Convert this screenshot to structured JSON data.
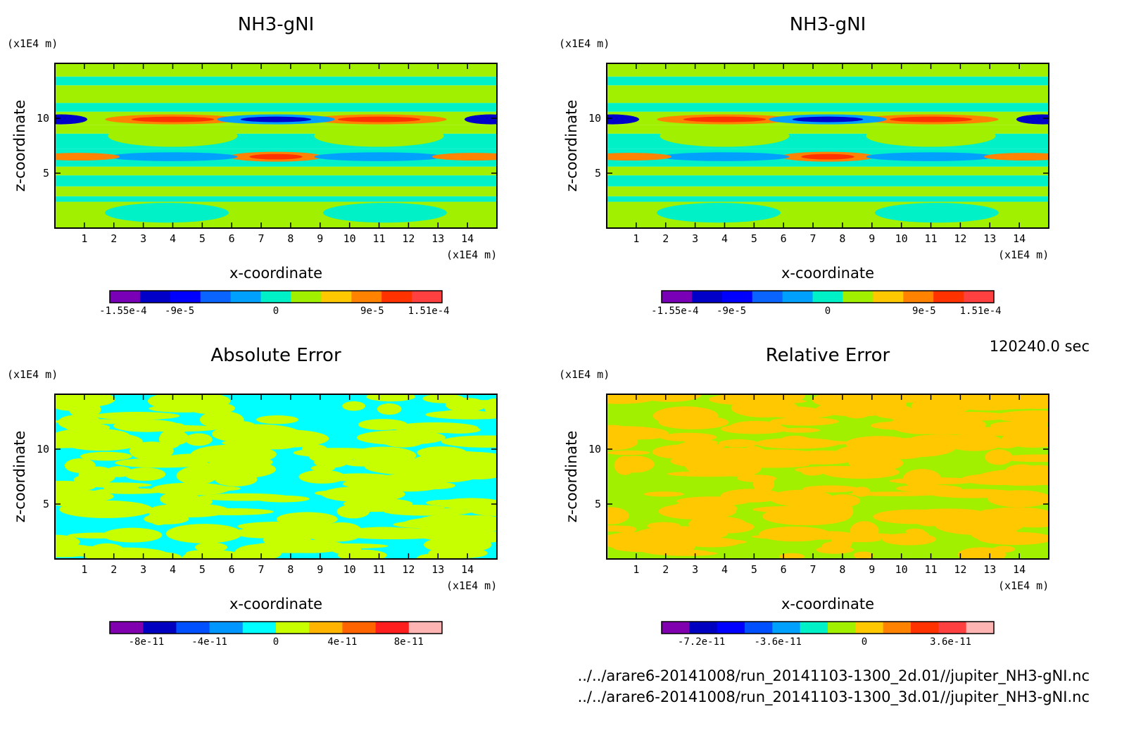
{
  "footer": {
    "time": "120240.0 sec",
    "paths": [
      "../../arare6-20141008/run_20141103-1300_2d.01//jupiter_NH3-gNI.nc",
      "../../arare6-20141008/run_20141103-1300_3d.01//jupiter_NH3-gNI.nc"
    ]
  },
  "chart_data": [
    {
      "type": "heatmap",
      "title": "NH3-gNI",
      "xlabel": "x-coordinate",
      "ylabel": "z-coordinate",
      "x_unit": "(x1E4 m)",
      "y_unit": "(x1E4 m)",
      "xlim": [
        0,
        15
      ],
      "ylim": [
        0,
        15
      ],
      "x_ticks": [
        "1",
        "2",
        "3",
        "4",
        "5",
        "6",
        "7",
        "8",
        "9",
        "10",
        "11",
        "12",
        "13",
        "14"
      ],
      "y_ticks": [
        "5",
        "10"
      ],
      "colorbar": {
        "colors": [
          "#7a00b8",
          "#0000c8",
          "#0000ff",
          "#0a64ff",
          "#00a0ff",
          "#00f0c8",
          "#a0f000",
          "#ffc800",
          "#ff8200",
          "#ff3200",
          "#ff4040"
        ],
        "tick_labels": [
          "-1.55e-4",
          "-9e-5",
          "0",
          "9e-5",
          "1.51e-4"
        ]
      }
    },
    {
      "type": "heatmap",
      "title": "NH3-gNI",
      "xlabel": "x-coordinate",
      "ylabel": "z-coordinate",
      "x_unit": "(x1E4 m)",
      "y_unit": "(x1E4 m)",
      "xlim": [
        0,
        15
      ],
      "ylim": [
        0,
        15
      ],
      "x_ticks": [
        "1",
        "2",
        "3",
        "4",
        "5",
        "6",
        "7",
        "8",
        "9",
        "10",
        "11",
        "12",
        "13",
        "14"
      ],
      "y_ticks": [
        "5",
        "10"
      ],
      "colorbar": {
        "colors": [
          "#7a00b8",
          "#0000c8",
          "#0000ff",
          "#0a64ff",
          "#00a0ff",
          "#00f0c8",
          "#a0f000",
          "#ffc800",
          "#ff8200",
          "#ff3200",
          "#ff4040"
        ],
        "tick_labels": [
          "-1.55e-4",
          "-9e-5",
          "0",
          "9e-5",
          "1.51e-4"
        ]
      }
    },
    {
      "type": "heatmap",
      "title": "Absolute Error",
      "xlabel": "x-coordinate",
      "ylabel": "z-coordinate",
      "x_unit": "(x1E4 m)",
      "y_unit": "(x1E4 m)",
      "xlim": [
        0,
        15
      ],
      "ylim": [
        0,
        15
      ],
      "x_ticks": [
        "1",
        "2",
        "3",
        "4",
        "5",
        "6",
        "7",
        "8",
        "9",
        "10",
        "11",
        "12",
        "13",
        "14"
      ],
      "y_ticks": [
        "5",
        "10"
      ],
      "colorbar": {
        "colors": [
          "#8000b0",
          "#0000c0",
          "#0050ff",
          "#0096ff",
          "#00ffff",
          "#c8ff00",
          "#ffb400",
          "#ff6400",
          "#ff1e1e",
          "#ffb4b4"
        ],
        "tick_labels": [
          "-8e-11",
          "-4e-11",
          "0",
          "4e-11",
          "8e-11"
        ]
      }
    },
    {
      "type": "heatmap",
      "title": "Relative Error",
      "xlabel": "x-coordinate",
      "ylabel": "z-coordinate",
      "x_unit": "(x1E4 m)",
      "y_unit": "(x1E4 m)",
      "xlim": [
        0,
        15
      ],
      "ylim": [
        0,
        15
      ],
      "x_ticks": [
        "1",
        "2",
        "3",
        "4",
        "5",
        "6",
        "7",
        "8",
        "9",
        "10",
        "11",
        "12",
        "13",
        "14"
      ],
      "y_ticks": [
        "5",
        "10"
      ],
      "colorbar": {
        "colors": [
          "#8000b0",
          "#0000c0",
          "#0000ff",
          "#0050ff",
          "#00a0ff",
          "#00f0c8",
          "#a0f000",
          "#ffc800",
          "#ff8200",
          "#ff3200",
          "#ff4040",
          "#ffb4b4"
        ],
        "tick_labels": [
          "-7.2e-11",
          "-3.6e-11",
          "0",
          "3.6e-11"
        ]
      }
    }
  ]
}
